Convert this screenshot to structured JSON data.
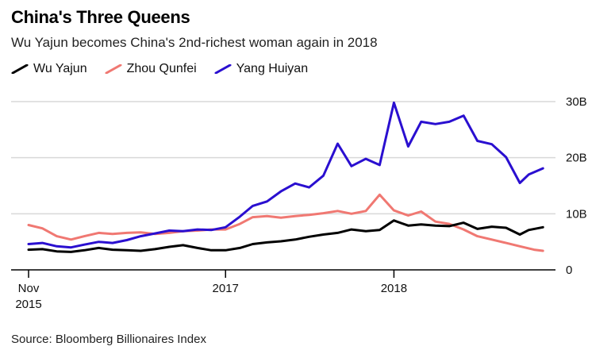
{
  "header": {
    "title": "China's Three Queens",
    "subtitle": "Wu Yajun becomes China's 2nd-richest woman again in 2018"
  },
  "source": "Source: Bloomberg Billionaires Index",
  "colors": {
    "wu": "#000000",
    "zhou": "#f07872",
    "yang": "#2a0fd0",
    "grid": "#d9d9d9"
  },
  "chart_data": {
    "type": "line",
    "x_axis_type": "date",
    "legend_position": "top-left",
    "grid": true,
    "ylim": [
      0,
      30
    ],
    "y_unit": "B",
    "xlim": [
      "2015-11-01",
      "2018-11-30"
    ],
    "x_ticks": [
      {
        "date": "2015-11-01",
        "line1": "Nov",
        "line2": "2015"
      },
      {
        "date": "2017-01-01",
        "line1": "2017",
        "line2": ""
      },
      {
        "date": "2018-01-01",
        "line1": "2018",
        "line2": ""
      }
    ],
    "y_ticks": [
      {
        "value": 0,
        "label": "0"
      },
      {
        "value": 10,
        "label": "10B"
      },
      {
        "value": 20,
        "label": "20B"
      },
      {
        "value": 30,
        "label": "30B"
      }
    ],
    "series": [
      {
        "name": "Wu Yajun",
        "color": "#000000",
        "points": [
          [
            "2015-11-01",
            3.6
          ],
          [
            "2015-12-01",
            3.7
          ],
          [
            "2016-01-01",
            3.3
          ],
          [
            "2016-02-01",
            3.2
          ],
          [
            "2016-03-01",
            3.5
          ],
          [
            "2016-04-01",
            3.9
          ],
          [
            "2016-05-01",
            3.6
          ],
          [
            "2016-06-01",
            3.5
          ],
          [
            "2016-07-01",
            3.4
          ],
          [
            "2016-08-01",
            3.7
          ],
          [
            "2016-09-01",
            4.1
          ],
          [
            "2016-10-01",
            4.4
          ],
          [
            "2016-11-01",
            3.9
          ],
          [
            "2016-12-01",
            3.5
          ],
          [
            "2017-01-01",
            3.5
          ],
          [
            "2017-02-01",
            3.9
          ],
          [
            "2017-03-01",
            4.6
          ],
          [
            "2017-04-01",
            4.9
          ],
          [
            "2017-05-01",
            5.1
          ],
          [
            "2017-06-01",
            5.4
          ],
          [
            "2017-07-01",
            5.9
          ],
          [
            "2017-08-01",
            6.3
          ],
          [
            "2017-09-01",
            6.6
          ],
          [
            "2017-10-01",
            7.2
          ],
          [
            "2017-11-01",
            6.9
          ],
          [
            "2017-12-01",
            7.1
          ],
          [
            "2018-01-01",
            8.8
          ],
          [
            "2018-02-01",
            7.9
          ],
          [
            "2018-03-01",
            8.1
          ],
          [
            "2018-04-01",
            7.9
          ],
          [
            "2018-05-01",
            7.8
          ],
          [
            "2018-06-01",
            8.4
          ],
          [
            "2018-07-01",
            7.3
          ],
          [
            "2018-08-01",
            7.7
          ],
          [
            "2018-09-01",
            7.5
          ],
          [
            "2018-10-01",
            6.3
          ],
          [
            "2018-10-20",
            7.1
          ],
          [
            "2018-11-20",
            7.6
          ]
        ]
      },
      {
        "name": "Zhou Qunfei",
        "color": "#f07872",
        "points": [
          [
            "2015-11-01",
            8.0
          ],
          [
            "2015-12-01",
            7.4
          ],
          [
            "2016-01-01",
            6.0
          ],
          [
            "2016-02-01",
            5.4
          ],
          [
            "2016-03-01",
            6.0
          ],
          [
            "2016-04-01",
            6.6
          ],
          [
            "2016-05-01",
            6.4
          ],
          [
            "2016-06-01",
            6.6
          ],
          [
            "2016-07-01",
            6.7
          ],
          [
            "2016-08-01",
            6.4
          ],
          [
            "2016-09-01",
            6.6
          ],
          [
            "2016-10-01",
            6.9
          ],
          [
            "2016-11-01",
            7.0
          ],
          [
            "2016-12-01",
            7.2
          ],
          [
            "2017-01-01",
            7.2
          ],
          [
            "2017-02-01",
            8.2
          ],
          [
            "2017-03-01",
            9.4
          ],
          [
            "2017-04-01",
            9.6
          ],
          [
            "2017-05-01",
            9.3
          ],
          [
            "2017-06-01",
            9.6
          ],
          [
            "2017-07-01",
            9.8
          ],
          [
            "2017-08-01",
            10.1
          ],
          [
            "2017-09-01",
            10.5
          ],
          [
            "2017-10-01",
            10.0
          ],
          [
            "2017-11-01",
            10.5
          ],
          [
            "2017-12-01",
            13.4
          ],
          [
            "2018-01-01",
            10.6
          ],
          [
            "2018-02-01",
            9.7
          ],
          [
            "2018-03-01",
            10.4
          ],
          [
            "2018-04-01",
            8.6
          ],
          [
            "2018-05-01",
            8.2
          ],
          [
            "2018-06-01",
            7.2
          ],
          [
            "2018-07-01",
            6.0
          ],
          [
            "2018-08-01",
            5.4
          ],
          [
            "2018-09-01",
            4.8
          ],
          [
            "2018-10-01",
            4.2
          ],
          [
            "2018-11-01",
            3.6
          ],
          [
            "2018-11-20",
            3.4
          ]
        ]
      },
      {
        "name": "Yang Huiyan",
        "color": "#2a0fd0",
        "points": [
          [
            "2015-11-01",
            4.6
          ],
          [
            "2015-12-01",
            4.8
          ],
          [
            "2016-01-01",
            4.2
          ],
          [
            "2016-02-01",
            4.0
          ],
          [
            "2016-03-01",
            4.5
          ],
          [
            "2016-04-01",
            5.0
          ],
          [
            "2016-05-01",
            4.8
          ],
          [
            "2016-06-01",
            5.3
          ],
          [
            "2016-07-01",
            6.0
          ],
          [
            "2016-08-01",
            6.5
          ],
          [
            "2016-09-01",
            7.0
          ],
          [
            "2016-10-01",
            6.9
          ],
          [
            "2016-11-01",
            7.2
          ],
          [
            "2016-12-01",
            7.1
          ],
          [
            "2017-01-01",
            7.6
          ],
          [
            "2017-02-01",
            9.5
          ],
          [
            "2017-03-01",
            11.4
          ],
          [
            "2017-04-01",
            12.2
          ],
          [
            "2017-05-01",
            14.0
          ],
          [
            "2017-06-01",
            15.4
          ],
          [
            "2017-07-01",
            14.7
          ],
          [
            "2017-08-01",
            16.8
          ],
          [
            "2017-09-01",
            22.5
          ],
          [
            "2017-10-01",
            18.5
          ],
          [
            "2017-11-01",
            19.8
          ],
          [
            "2017-12-01",
            18.7
          ],
          [
            "2018-01-01",
            29.8
          ],
          [
            "2018-02-01",
            22.0
          ],
          [
            "2018-03-01",
            26.4
          ],
          [
            "2018-04-01",
            26.0
          ],
          [
            "2018-05-01",
            26.4
          ],
          [
            "2018-06-01",
            27.5
          ],
          [
            "2018-07-01",
            23.0
          ],
          [
            "2018-08-01",
            22.4
          ],
          [
            "2018-09-01",
            20.1
          ],
          [
            "2018-10-01",
            15.5
          ],
          [
            "2018-10-20",
            17.0
          ],
          [
            "2018-11-20",
            18.1
          ]
        ]
      }
    ]
  }
}
